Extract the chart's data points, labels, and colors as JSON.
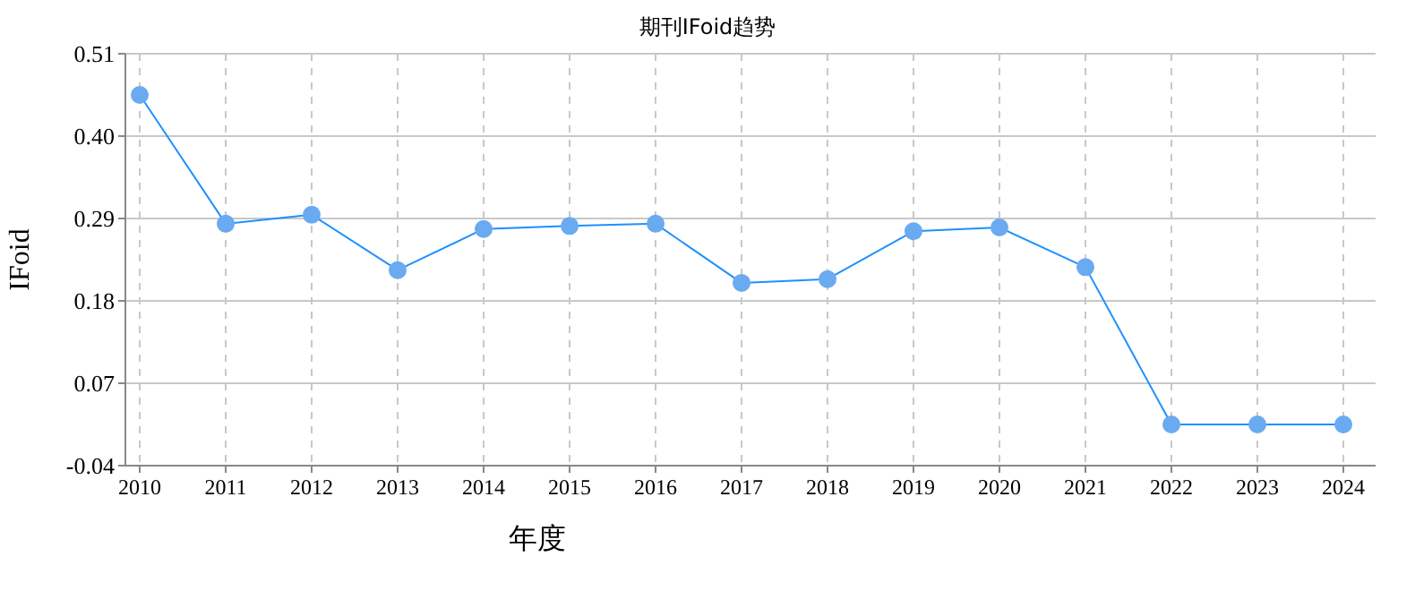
{
  "chart_data": {
    "type": "line",
    "title": "期刊IFoid趋势",
    "xlabel": "年度",
    "ylabel": "IFoid",
    "categories": [
      "2010",
      "2011",
      "2012",
      "2013",
      "2014",
      "2015",
      "2016",
      "2017",
      "2018",
      "2019",
      "2020",
      "2021",
      "2022",
      "2023",
      "2024"
    ],
    "series": [
      {
        "color": "#1e90ff",
        "values": [
          0.455,
          0.283,
          0.295,
          0.221,
          0.276,
          0.28,
          0.283,
          0.204,
          0.209,
          0.273,
          0.278,
          0.225,
          0.015,
          0.015,
          0.015
        ]
      }
    ],
    "ylim": [
      -0.04,
      0.51
    ],
    "yticks": [
      -0.04,
      0.07,
      0.18,
      0.29,
      {
        "value": 0.4,
        "label": "0.40"
      },
      0.51
    ],
    "grid": true,
    "marker": "circle"
  }
}
